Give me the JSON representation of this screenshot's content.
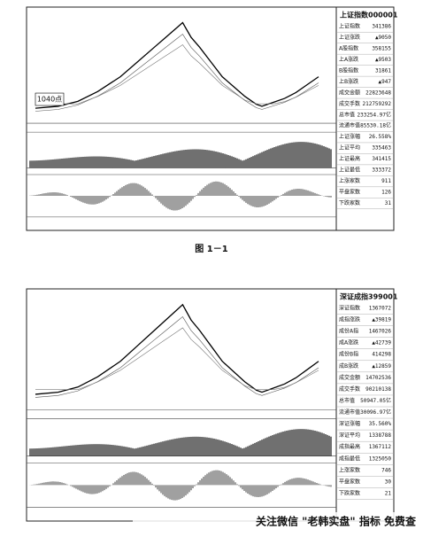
{
  "charts": [
    {
      "title": "上证指数000001",
      "annotation": "1040点",
      "rows": [
        [
          "上证指数",
          "341386"
        ],
        [
          "上证涨跌",
          "▲9050"
        ],
        [
          "A股指数",
          "358155"
        ],
        [
          "上A涨跌",
          "▲9503"
        ],
        [
          "B股指数",
          "31861"
        ],
        [
          "上B涨跌",
          "▲947"
        ],
        [
          "成交金额",
          "22823648"
        ],
        [
          "成交手数",
          "212759292"
        ],
        [
          "总市值",
          "233254.97亿"
        ],
        [
          "流通市值",
          "85530.18亿"
        ],
        [
          "上证涨幅",
          "26.558%"
        ],
        [
          "上证平均",
          "335463"
        ],
        [
          "上证最高",
          "341415"
        ],
        [
          "上证最低",
          "333372"
        ],
        [
          "上涨家数",
          "911"
        ],
        [
          "平盘家数",
          "126"
        ],
        [
          "下跌家数",
          "31"
        ]
      ]
    },
    {
      "title": "深证成指399001",
      "rows": [
        [
          "深证指数",
          "1367072"
        ],
        [
          "成指涨跌",
          "▲39819"
        ],
        [
          "成份A指",
          "1467026"
        ],
        [
          "成A涨跌",
          "▲42739"
        ],
        [
          "成份B指",
          "414298"
        ],
        [
          "成B涨跌",
          "▲12859"
        ],
        [
          "成交金额",
          "14702536"
        ],
        [
          "成交手数",
          "90210138"
        ],
        [
          "总市值",
          "50947.05亿"
        ],
        [
          "流通市值",
          "30096.97亿"
        ],
        [
          "深证涨幅",
          "35.560%"
        ],
        [
          "深证平均",
          "1338788"
        ],
        [
          "成指最高",
          "1367112"
        ],
        [
          "成指最低",
          "1325050"
        ],
        [
          "上涨家数",
          "746"
        ],
        [
          "平盘家数",
          "30"
        ],
        [
          "下跌家数",
          "21"
        ]
      ]
    }
  ],
  "caption": "图 1－1",
  "watermark": "关注微信 \"老韩实盘\" 指标 免费查"
}
